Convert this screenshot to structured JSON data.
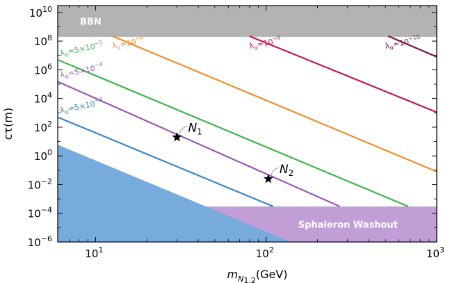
{
  "chart_data": {
    "type": "line",
    "xlabel": {
      "main": "m",
      "sub": "N",
      "subsub": "1,2",
      "unit": "(GeV)"
    },
    "ylabel": "cτ(m)",
    "xscale": "log",
    "yscale": "log",
    "xlim": [
      6,
      1000
    ],
    "ylim": [
      1e-06,
      30000000000.0
    ],
    "x_ticks": [
      {
        "value": 10,
        "base": "10",
        "exp": "1"
      },
      {
        "value": 100,
        "base": "10",
        "exp": "2"
      },
      {
        "value": 1000,
        "base": "10",
        "exp": "3"
      }
    ],
    "y_ticks": [
      {
        "value": 1e-06,
        "base": "10",
        "exp": "−6"
      },
      {
        "value": 0.0001,
        "base": "10",
        "exp": "−4"
      },
      {
        "value": 0.01,
        "base": "10",
        "exp": "−2"
      },
      {
        "value": 1,
        "base": "10",
        "exp": "0"
      },
      {
        "value": 100.0,
        "base": "10",
        "exp": "2"
      },
      {
        "value": 10000.0,
        "base": "10",
        "exp": "4"
      },
      {
        "value": 1000000.0,
        "base": "10",
        "exp": "6"
      },
      {
        "value": 100000000.0,
        "base": "10",
        "exp": "8"
      },
      {
        "value": 10000000000.0,
        "base": "10",
        "exp": "10"
      }
    ],
    "regions": [
      {
        "label": "BBN",
        "color": "#b3b3b3",
        "ymin": 200000000.0,
        "ymax": 30000000000.0
      },
      {
        "label": "Sphaleron Washout",
        "color": "#c19fd6",
        "ymin": 1e-06,
        "ymax": 0.0003,
        "xmin": 43
      },
      {
        "label": "",
        "color": "#77aadd",
        "polygon_data": [
          [
            6,
            6
          ],
          [
            6,
            1e-06
          ],
          [
            140,
            1e-06
          ]
        ]
      }
    ],
    "series": [
      {
        "name": "λα=10⁻⁶",
        "prefix": "λ",
        "sub": "α",
        "coef": "=10",
        "exp": "−6",
        "color": "#f28e2b",
        "x": [
          12.6,
          1000
        ],
        "y": [
          220000000.0,
          0.08
        ]
      },
      {
        "name": "λα=10⁻⁸",
        "prefix": "λ",
        "sub": "α",
        "coef": "=10",
        "exp": "−8",
        "color": "#c2185b",
        "x": [
          80,
          1000
        ],
        "y": [
          220000000.0,
          1100.0
        ]
      },
      {
        "name": "λα=10⁻¹⁰",
        "prefix": "λ",
        "sub": "α",
        "coef": "=10",
        "exp": "−10",
        "color": "#7b1747",
        "x": [
          520,
          1000
        ],
        "y": [
          220000000.0,
          8000000.0
        ]
      },
      {
        "name": "λα=5×10⁻⁵",
        "prefix": "λ",
        "sub": "α",
        "coef": "=5×10",
        "exp": "−5",
        "color": "#3cb44b",
        "x": [
          6,
          680
        ],
        "y": [
          5000000.0,
          0.0003
        ]
      },
      {
        "name": "λα=5×10⁻⁴",
        "prefix": "λ",
        "sub": "α",
        "coef": "=5×10",
        "exp": "−4",
        "color": "#9b59b6",
        "x": [
          6,
          270
        ],
        "y": [
          150000.0,
          0.0003
        ]
      },
      {
        "name": "λα=5×10⁻³",
        "prefix": "λ",
        "sub": "α",
        "coef": "=5×10",
        "exp": "−3",
        "color": "#3a87c8",
        "x": [
          6,
          110
        ],
        "y": [
          500,
          0.0003
        ]
      }
    ],
    "points": [
      {
        "label": "N",
        "sub": "1",
        "x": 30,
        "y": 20
      },
      {
        "label": "N",
        "sub": "2",
        "x": 103,
        "y": 0.025
      }
    ]
  }
}
